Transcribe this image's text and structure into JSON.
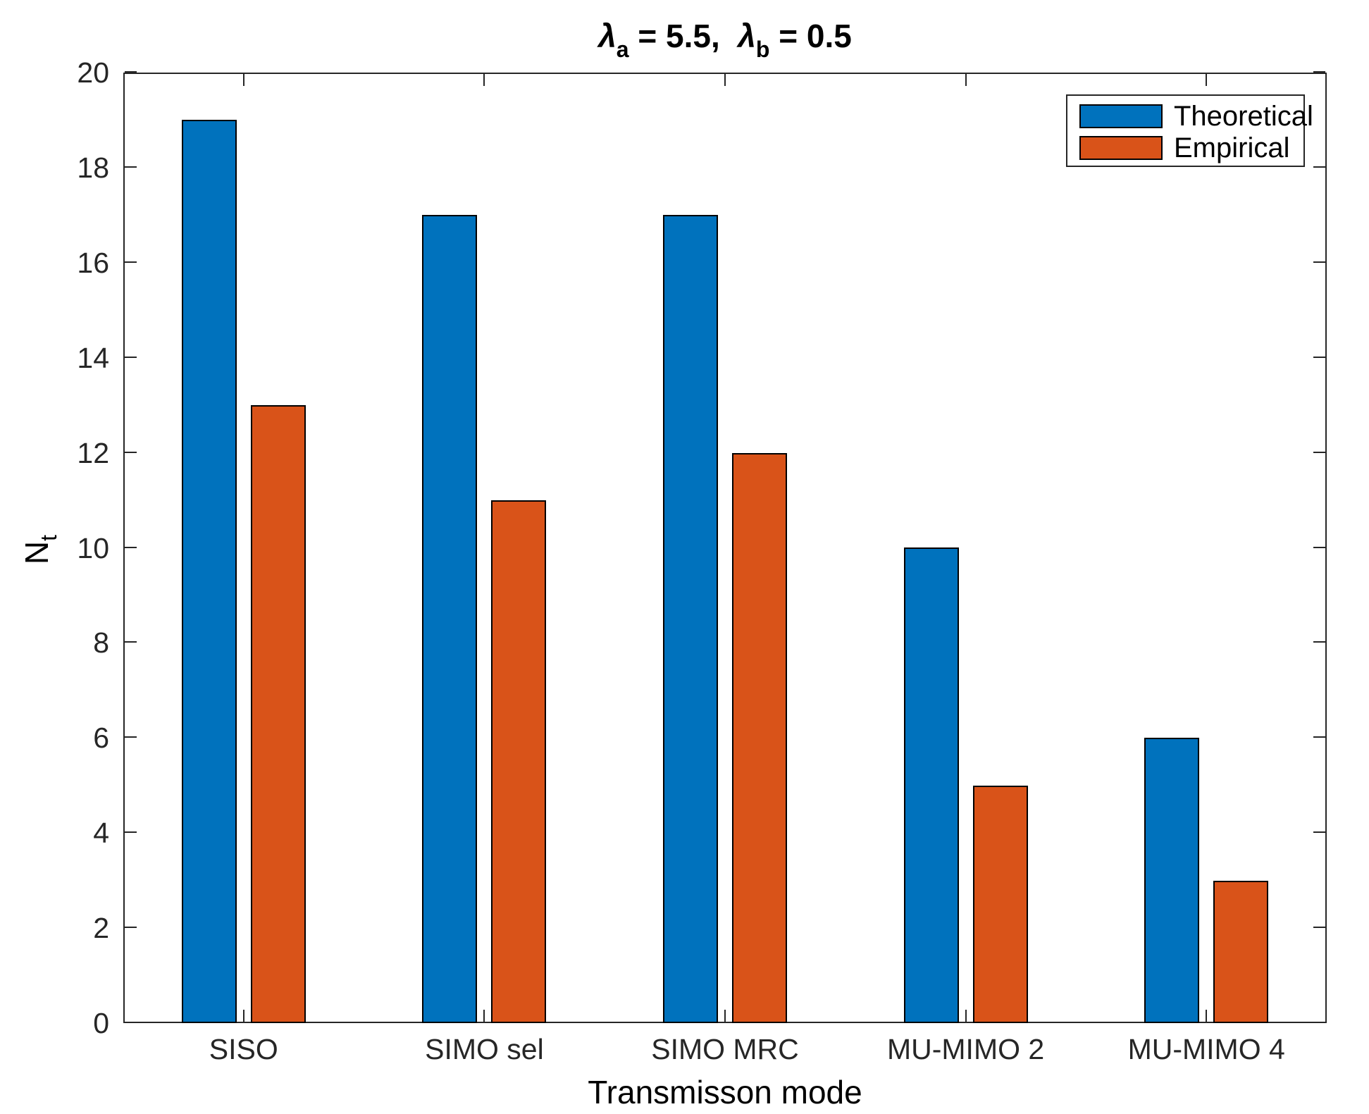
{
  "title": {
    "lambda_a_symbol": "λ",
    "lambda_a_sub": "a",
    "eq_a": " = 5.5,  ",
    "lambda_b_symbol": "λ",
    "lambda_b_sub": "b",
    "eq_b": " = 0.5"
  },
  "chart_data": {
    "type": "bar",
    "title": "lambda_a = 5.5, lambda_b = 0.5",
    "categories": [
      "SISO",
      "SIMO sel",
      "SIMO MRC",
      "MU-MIMO 2",
      "MU-MIMO 4"
    ],
    "series": [
      {
        "name": "Theoretical",
        "color": "#0072BD",
        "values": [
          19,
          17,
          17,
          10,
          6
        ]
      },
      {
        "name": "Empirical",
        "color": "#D95319",
        "values": [
          13,
          11,
          12,
          5,
          3
        ]
      }
    ],
    "xlabel": "Transmisson mode",
    "ylabel_main": "N",
    "ylabel_sub": "t",
    "ylim": [
      0,
      20
    ],
    "yticks": [
      0,
      2,
      4,
      6,
      8,
      10,
      12,
      14,
      16,
      18,
      20
    ],
    "bar_edge_color": "#000000",
    "axis_color": "#262626",
    "legend_position": "northeast",
    "grid": false
  }
}
